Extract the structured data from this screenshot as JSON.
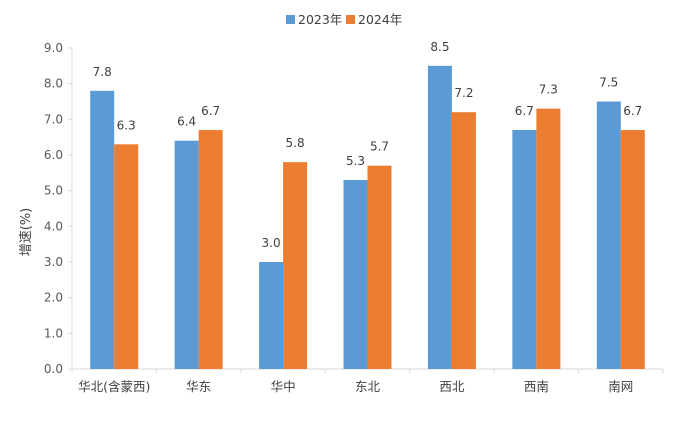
{
  "chart_data": {
    "type": "bar",
    "title": "",
    "xlabel": "",
    "ylabel": "增速(%)",
    "ylim": [
      0,
      9
    ],
    "yticks": [
      "0.0",
      "1.0",
      "2.0",
      "3.0",
      "4.0",
      "5.0",
      "6.0",
      "7.0",
      "8.0",
      "9.0"
    ],
    "grid": false,
    "legend_position": "top-center",
    "categories": [
      "华北(含蒙西)",
      "华东",
      "华中",
      "东北",
      "西北",
      "西南",
      "南网"
    ],
    "series": [
      {
        "name": "2023年",
        "color": "#5B9BD5",
        "values": [
          7.8,
          6.4,
          3.0,
          5.3,
          8.5,
          6.7,
          7.5
        ],
        "labels": [
          "7.8",
          "6.4",
          "3.0",
          "5.3",
          "8.5",
          "6.7",
          "7.5"
        ]
      },
      {
        "name": "2024年",
        "color": "#ED7D31",
        "values": [
          6.3,
          6.7,
          5.8,
          5.7,
          7.2,
          7.3,
          6.7
        ],
        "labels": [
          "6.3",
          "6.7",
          "5.8",
          "5.7",
          "7.2",
          "7.3",
          "6.7"
        ]
      }
    ]
  }
}
